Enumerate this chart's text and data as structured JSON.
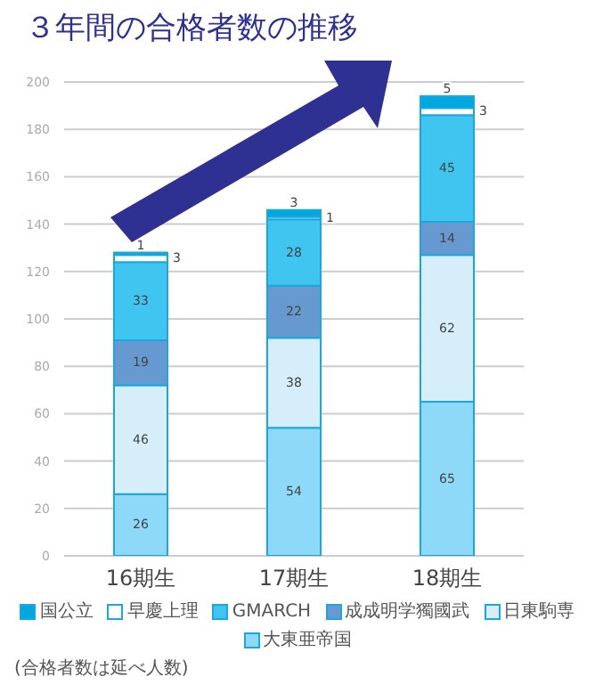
{
  "chart_data": {
    "type": "bar",
    "title": "３年間の合格者数の推移",
    "stacked": true,
    "categories": [
      "16期生",
      "17期生",
      "18期生"
    ],
    "series": [
      {
        "name": "大東亜帝国",
        "color": "#8ed8f8",
        "values": [
          26,
          54,
          65
        ]
      },
      {
        "name": "日東駒専",
        "color": "#d5eefa",
        "values": [
          46,
          38,
          62
        ]
      },
      {
        "name": "成成明学獨國武",
        "color": "#6699d0",
        "values": [
          19,
          22,
          14
        ]
      },
      {
        "name": "GMARCH",
        "color": "#40c4f0",
        "values": [
          33,
          28,
          45
        ]
      },
      {
        "name": "早慶上理",
        "color": "#ffffff",
        "values": [
          3,
          1,
          3
        ]
      },
      {
        "name": "国公立",
        "color": "#00a8e0",
        "values": [
          1,
          3,
          5
        ]
      }
    ],
    "ylim": [
      0,
      200
    ],
    "yticks": [
      0,
      20,
      40,
      60,
      80,
      100,
      120,
      140,
      160,
      180,
      200
    ],
    "grid": "y",
    "legend": "bottom",
    "data_labels": true,
    "annotations": [
      "(合格者数は延べ人数)"
    ]
  }
}
